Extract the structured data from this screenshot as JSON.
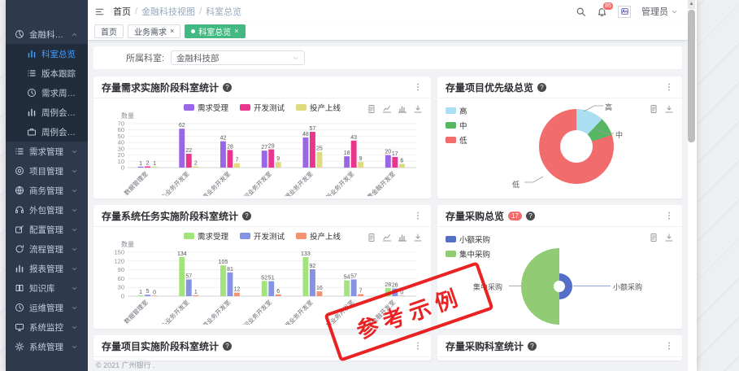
{
  "topbar": {
    "breadcrumb": [
      "首页",
      "金融科技视图",
      "科室总览"
    ],
    "separator": "/",
    "notification_count": "85",
    "username": "管理员"
  },
  "tabs": [
    {
      "label": "首页",
      "closable": false,
      "active": false
    },
    {
      "label": "业务需求",
      "closable": true,
      "active": false
    },
    {
      "label": "科室总览",
      "closable": true,
      "active": true
    }
  ],
  "sidebar": {
    "groups": [
      {
        "label": "金融科技视图",
        "icon": "pie",
        "expanded": true,
        "children": [
          {
            "label": "科室总览",
            "icon": "bars",
            "active": true
          },
          {
            "label": "版本跟踪",
            "icon": "list",
            "active": false
          },
          {
            "label": "需求周期视图",
            "icon": "clock",
            "active": false
          },
          {
            "label": "周例会展示报表-项目",
            "icon": "bars",
            "active": false
          },
          {
            "label": "周例会展示报表-采购",
            "icon": "briefcase",
            "active": false
          }
        ]
      },
      {
        "label": "需求管理",
        "icon": "list"
      },
      {
        "label": "项目管理",
        "icon": "target"
      },
      {
        "label": "商务管理",
        "icon": "globe"
      },
      {
        "label": "外包管理",
        "icon": "headset"
      },
      {
        "label": "配置管理",
        "icon": "edit"
      },
      {
        "label": "流程管理",
        "icon": "refresh"
      },
      {
        "label": "报表管理",
        "icon": "bars"
      },
      {
        "label": "知识库",
        "icon": "book"
      },
      {
        "label": "运维管理",
        "icon": "clock"
      },
      {
        "label": "系统监控",
        "icon": "monitor"
      },
      {
        "label": "系统管理",
        "icon": "gear"
      }
    ]
  },
  "filter": {
    "label": "所属科室:",
    "value": "金融科技部"
  },
  "chart_data": [
    {
      "type": "bar",
      "title": "存量需求实施阶段科室统计",
      "ylabel": "数量",
      "ylim": [
        0,
        70
      ],
      "yticks": [
        0,
        10,
        20,
        30,
        40,
        50,
        60,
        70
      ],
      "categories": [
        "数据管理室",
        "核心业务开发室",
        "渠道业务开发室",
        "中间业务开发室",
        "数据业务开发室",
        "创新业务开发室",
        "消费金融开发室"
      ],
      "series": [
        {
          "name": "需求受理",
          "color": "#9a66e8",
          "values": [
            1,
            62,
            42,
            27,
            48,
            18,
            20
          ]
        },
        {
          "name": "开发测试",
          "color": "#e8368f",
          "values": [
            2,
            22,
            28,
            29,
            57,
            43,
            17
          ]
        },
        {
          "name": "投产上线",
          "color": "#dfd981",
          "values": [
            1,
            2,
            7,
            9,
            25,
            9,
            6
          ]
        }
      ],
      "legend_position": "top",
      "grid": true,
      "toolbox": [
        "data-view",
        "line-chart",
        "bar-chart",
        "download"
      ]
    },
    {
      "type": "pie",
      "subtype": "donut",
      "title": "存量项目优先级总览",
      "slices": [
        {
          "label": "高",
          "pct": 12,
          "color": "#aadff2"
        },
        {
          "label": "中",
          "pct": 8,
          "color": "#57b661"
        },
        {
          "label": "低",
          "pct": 80,
          "color": "#f16d6d"
        }
      ],
      "legend_position": "top-left",
      "toolbox": [
        "data-view",
        "download"
      ]
    },
    {
      "type": "bar",
      "title": "存量系统任务实施阶段科室统计",
      "ylabel": "数量",
      "ylim": [
        0,
        150
      ],
      "yticks": [
        0,
        30,
        60,
        90,
        120,
        150
      ],
      "categories": [
        "数据管理室",
        "核心业务开发室",
        "渠道业务开发室",
        "中间业务开发室",
        "数据业务开发室",
        "创新业务开发室",
        "消费金融开发室"
      ],
      "series": [
        {
          "name": "需求受理",
          "color": "#a2e37e",
          "values": [
            1,
            134,
            105,
            52,
            133,
            54,
            28
          ]
        },
        {
          "name": "开发测试",
          "color": "#8493e3",
          "values": [
            5,
            57,
            81,
            51,
            92,
            57,
            26
          ]
        },
        {
          "name": "投产上线",
          "color": "#ef9372",
          "values": [
            0,
            1,
            12,
            6,
            16,
            7,
            0
          ]
        }
      ],
      "legend_position": "top",
      "grid": true,
      "toolbox": [
        "data-view",
        "line-chart",
        "bar-chart",
        "download"
      ]
    },
    {
      "type": "pie",
      "subtype": "rose",
      "title": "存量采购总览",
      "badge": "17",
      "slices": [
        {
          "label": "小额采购",
          "color": "#5470c6",
          "size": "small"
        },
        {
          "label": "集中采购",
          "color": "#91cc75",
          "size": "large"
        }
      ],
      "legend_position": "top-left",
      "toolbox": [
        "data-view",
        "download"
      ]
    },
    {
      "type": "bar",
      "title": "存量项目实施阶段科室统计",
      "partial": true
    },
    {
      "type": "bar",
      "title": "存量采购科室统计",
      "partial": true
    }
  ],
  "stamp": {
    "text": "参考示例"
  },
  "footer": {
    "text": "© 2021 广州银行 ."
  },
  "colors": {
    "accent": "#409eff",
    "tab_active": "#42b983",
    "badge": "#f56c6c",
    "stamp": "#e81313",
    "sidebar_bg": "#2d3a4d"
  }
}
